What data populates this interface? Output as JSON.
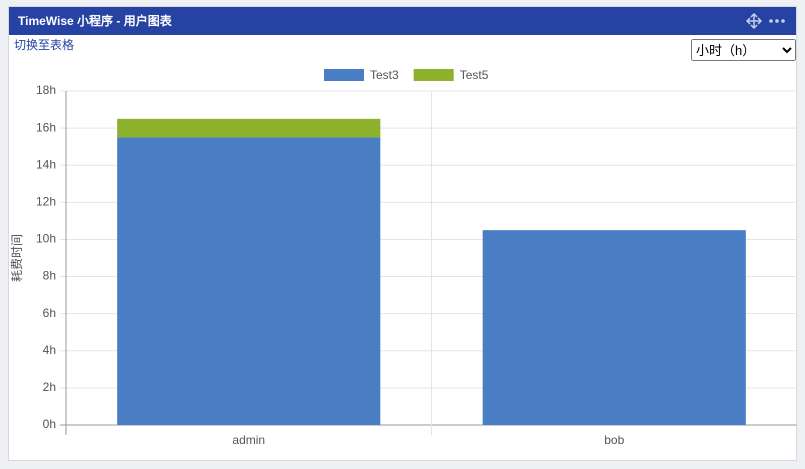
{
  "header": {
    "title": "TimeWise 小程序 - 用户图表"
  },
  "toolbar": {
    "link": "切换至表格",
    "unit_option": "小时（h）"
  },
  "chart_data": {
    "type": "stacked_bar",
    "y_label": "耗费时间",
    "categories": [
      "admin",
      "bob"
    ],
    "series": [
      {
        "name": "Test3",
        "color": "#4a7ec4",
        "values": [
          15.5,
          10.5
        ]
      },
      {
        "name": "Test5",
        "color": "#8db02d",
        "values": [
          1,
          0
        ]
      }
    ],
    "ylim": [
      0,
      18
    ],
    "yticks": [
      {
        "value": 0,
        "label": "0h"
      },
      {
        "value": 2,
        "label": "2h"
      },
      {
        "value": 4,
        "label": "4h"
      },
      {
        "value": 6,
        "label": "6h"
      },
      {
        "value": 8,
        "label": "8h"
      },
      {
        "value": 10,
        "label": "10h"
      },
      {
        "value": 12,
        "label": "12h"
      },
      {
        "value": 14,
        "label": "14h"
      },
      {
        "value": 16,
        "label": "16h"
      },
      {
        "value": 18,
        "label": "18h"
      }
    ],
    "grid": true
  }
}
